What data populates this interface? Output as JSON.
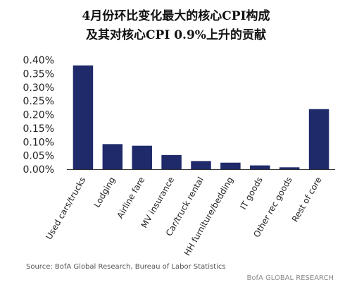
{
  "chart_data": {
    "type": "bar",
    "title": "4月份环比变化最大的核心CPI构成",
    "subtitle": "及其对核心CPI 0.9%上升的贡献",
    "categories": [
      "Used cars/trucks",
      "Lodging",
      "Airline fare",
      "MV insurance",
      "Car/truck rental",
      "HH furniture/bedding",
      "IT goods",
      "Other rec goods",
      "Rest of core"
    ],
    "values": [
      0.38,
      0.092,
      0.086,
      0.052,
      0.03,
      0.024,
      0.014,
      0.007,
      0.22
    ],
    "y_ticks": [
      "0.00%",
      "0.05%",
      "0.10%",
      "0.15%",
      "0.20%",
      "0.25%",
      "0.30%",
      "0.35%",
      "0.40%"
    ],
    "ylim": [
      0,
      0.4
    ],
    "grid": false,
    "bar_color": "#1f2a6b",
    "xlabel": "",
    "ylabel": ""
  },
  "footer": {
    "source": "Source:  BofA Global Research, Bureau of Labor Statistics",
    "brand": "BofA GLOBAL RESEARCH"
  },
  "colors": {
    "bar": "#1f2a6b",
    "axis": "#333333",
    "footer_text": "#555555",
    "brand_text": "#8a8a8a"
  }
}
